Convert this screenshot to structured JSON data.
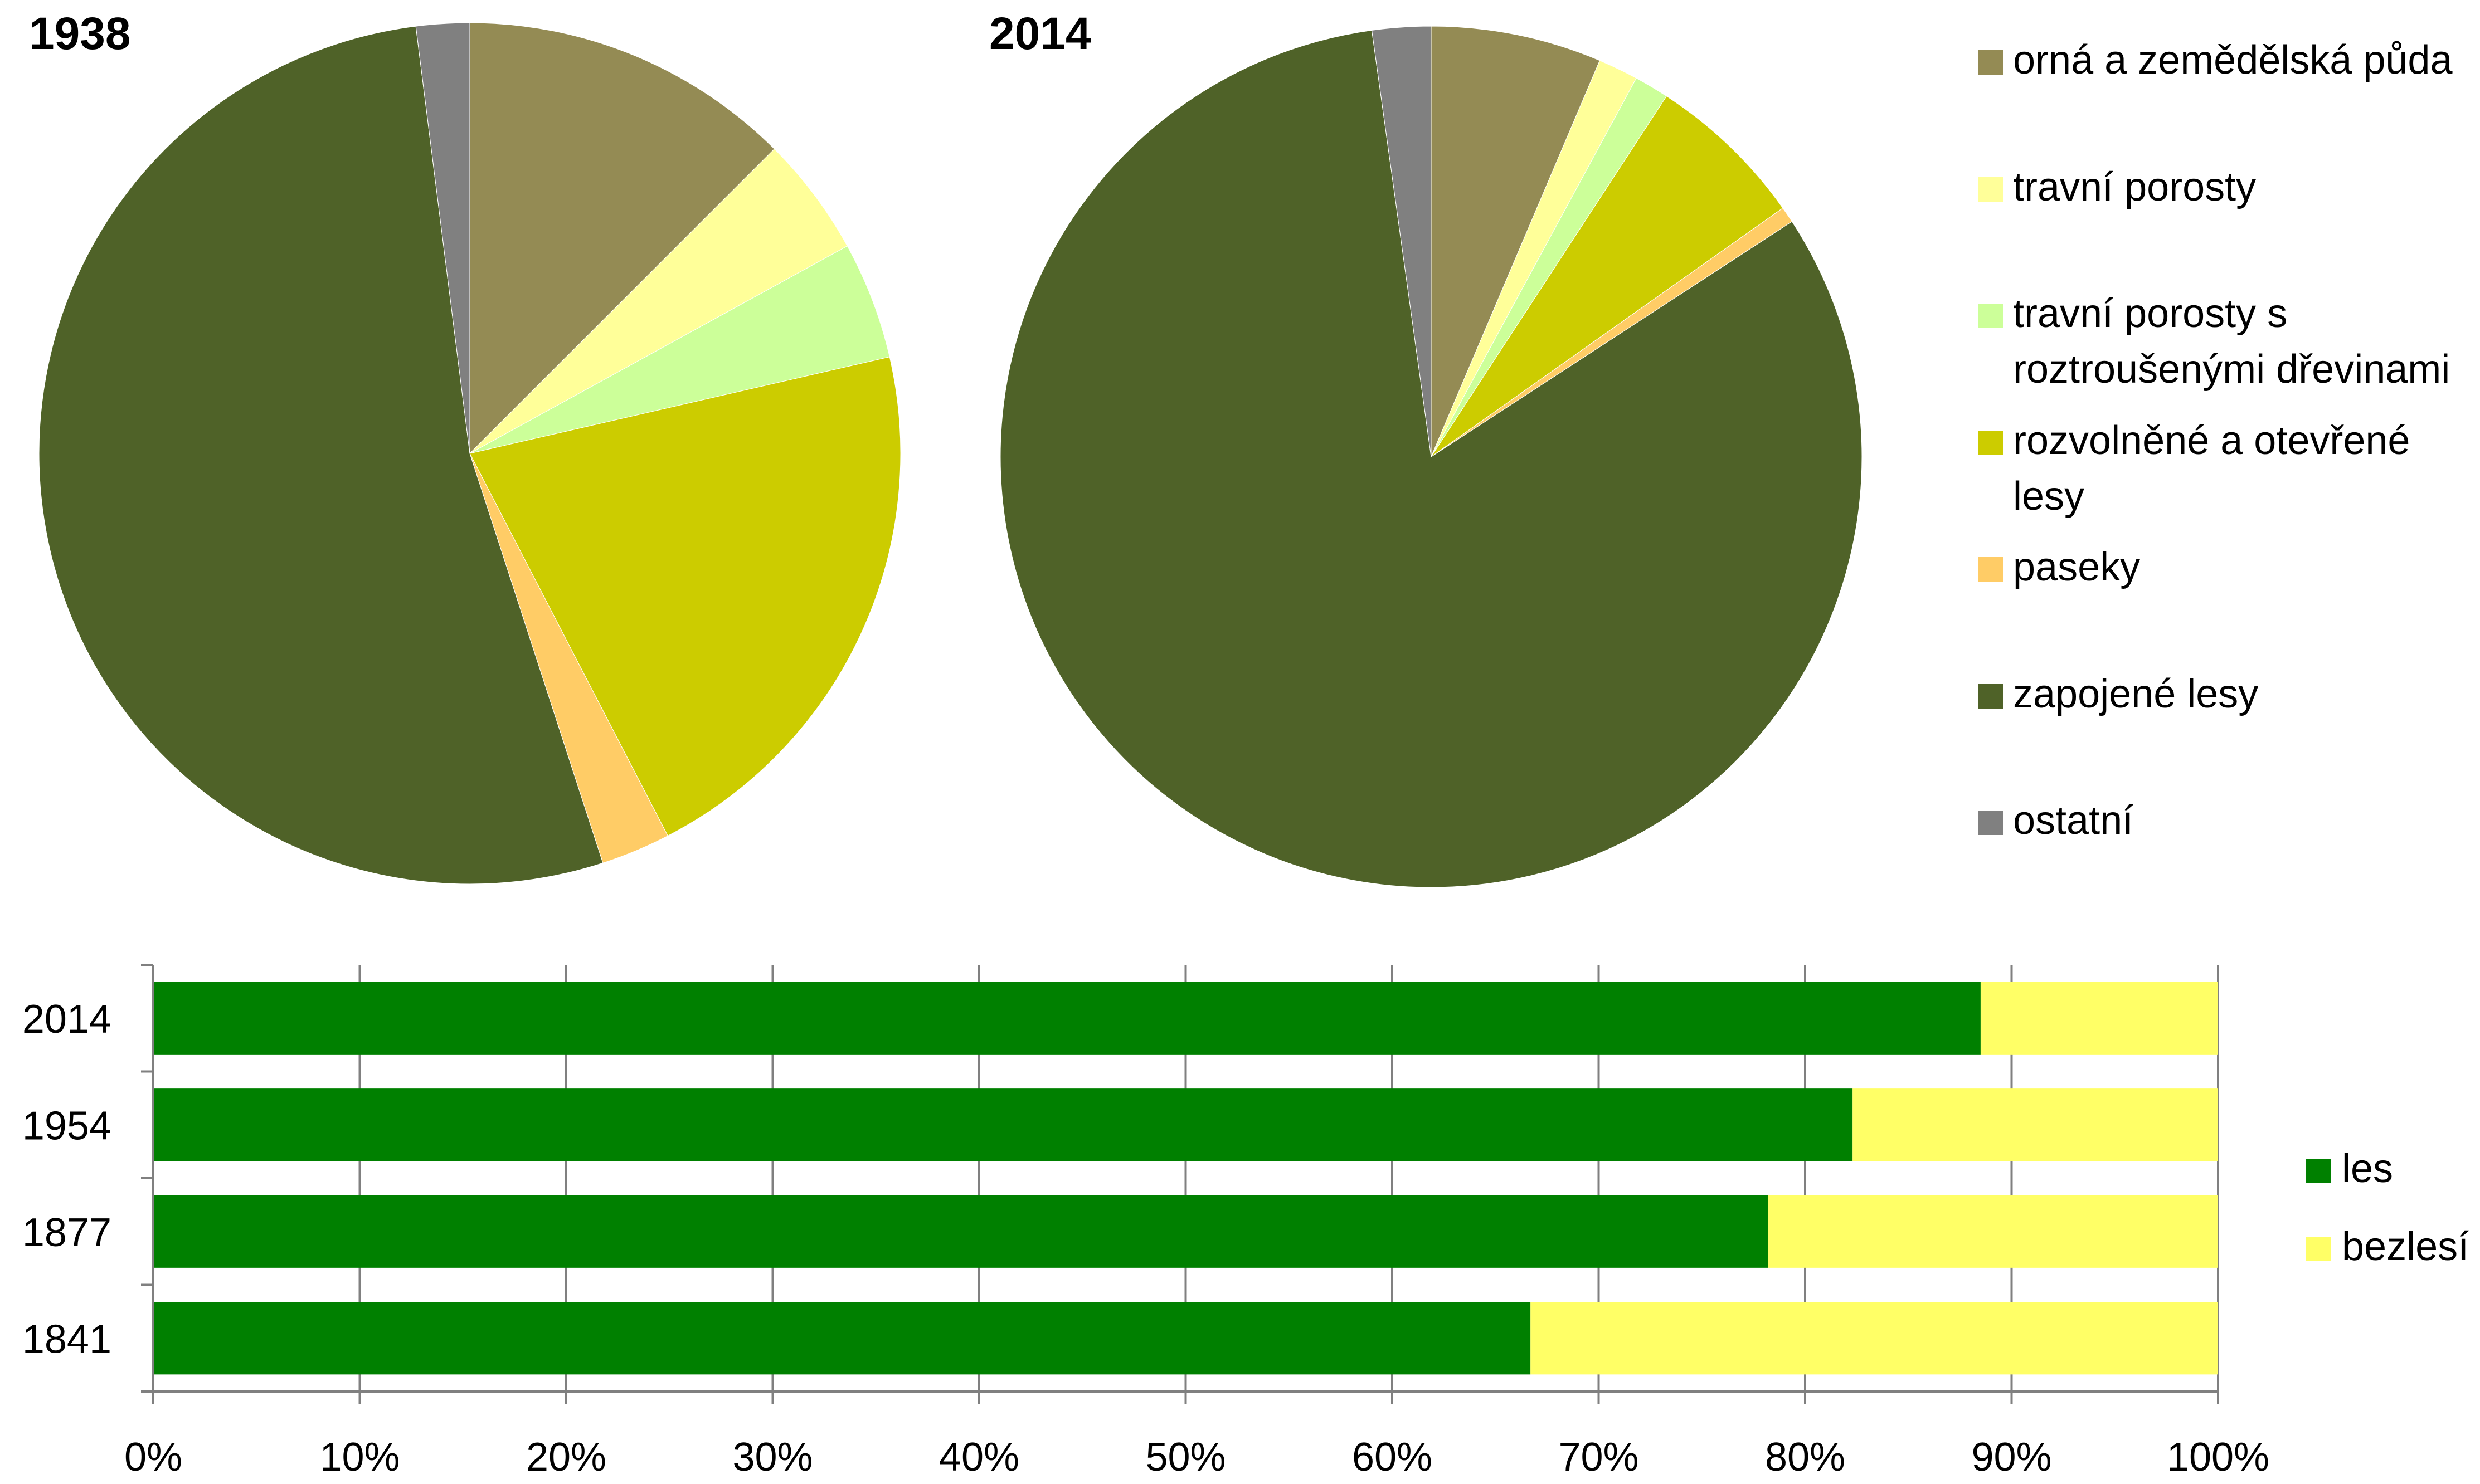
{
  "colors": {
    "orna": "#948B54",
    "travni": "#FFFF99",
    "travni_dreviny": "#CCFF99",
    "rozvolnene": "#CCCC00",
    "paseky": "#FFCC66",
    "zapojene": "#4F6228",
    "ostatni": "#808080",
    "les": "#008000",
    "bezlesi": "#FFFF66",
    "axis": "#808080"
  },
  "chart_data": [
    {
      "type": "pie",
      "title": "1938",
      "start_angle_deg": 0,
      "direction": "clockwise",
      "slices": [
        {
          "label": "orná a zemědělská půda",
          "value": 12.5,
          "color_key": "orna"
        },
        {
          "label": "travní porosty",
          "value": 4.5,
          "color_key": "travni"
        },
        {
          "label": "travní porosty s roztroušenými dřevinami",
          "value": 4.4,
          "color_key": "travni_dreviny"
        },
        {
          "label": "rozvolněné a otevřené lesy",
          "value": 21.0,
          "color_key": "rozvolnene"
        },
        {
          "label": "paseky",
          "value": 2.6,
          "color_key": "paseky"
        },
        {
          "label": "zapojené lesy",
          "value": 53.0,
          "color_key": "zapojene"
        },
        {
          "label": "ostatní",
          "value": 2.0,
          "color_key": "ostatni"
        }
      ]
    },
    {
      "type": "pie",
      "title": "2014",
      "start_angle_deg": 0,
      "direction": "clockwise",
      "slices": [
        {
          "label": "orná a zemědělská půda",
          "value": 6.4,
          "color_key": "orna"
        },
        {
          "label": "travní porosty",
          "value": 1.5,
          "color_key": "travni"
        },
        {
          "label": "travní porosty s roztroušenými dřevinami",
          "value": 1.3,
          "color_key": "travni_dreviny"
        },
        {
          "label": "rozvolněné a otevřené lesy",
          "value": 6.0,
          "color_key": "rozvolnene"
        },
        {
          "label": "paseky",
          "value": 0.6,
          "color_key": "paseky"
        },
        {
          "label": "zapojené lesy",
          "value": 82.0,
          "color_key": "zapojene"
        },
        {
          "label": "ostatní",
          "value": 2.2,
          "color_key": "ostatni"
        }
      ]
    },
    {
      "type": "bar",
      "orientation": "horizontal",
      "stacked": true,
      "percent": true,
      "categories": [
        "2014",
        "1954",
        "1877",
        "1841"
      ],
      "series": [
        {
          "name": "les",
          "values": [
            88.5,
            82.3,
            78.2,
            66.7
          ],
          "color_key": "les"
        },
        {
          "name": "bezlesí",
          "values": [
            11.5,
            17.7,
            21.8,
            33.3
          ],
          "color_key": "bezlesi"
        }
      ],
      "xlim": [
        0,
        100
      ],
      "xticks": [
        "0%",
        "10%",
        "20%",
        "30%",
        "40%",
        "50%",
        "60%",
        "70%",
        "80%",
        "90%",
        "100%"
      ],
      "grid": "vertical",
      "legend": "right"
    }
  ],
  "pie_legend": [
    {
      "lines": [
        "orná a zemědělská půda"
      ],
      "color_key": "orna"
    },
    {
      "lines": [
        "travní porosty"
      ],
      "color_key": "travni"
    },
    {
      "lines": [
        "travní porosty s",
        "roztroušenými dřevinami"
      ],
      "color_key": "travni_dreviny"
    },
    {
      "lines": [
        "rozvolněné a otevřené",
        "lesy"
      ],
      "color_key": "rozvolnene"
    },
    {
      "lines": [
        "paseky"
      ],
      "color_key": "paseky"
    },
    {
      "lines": [
        "zapojené lesy"
      ],
      "color_key": "zapojene"
    },
    {
      "lines": [
        "ostatní"
      ],
      "color_key": "ostatni"
    }
  ],
  "bar_legend": [
    {
      "label": "les",
      "color_key": "les"
    },
    {
      "label": "bezlesí",
      "color_key": "bezlesi"
    }
  ]
}
